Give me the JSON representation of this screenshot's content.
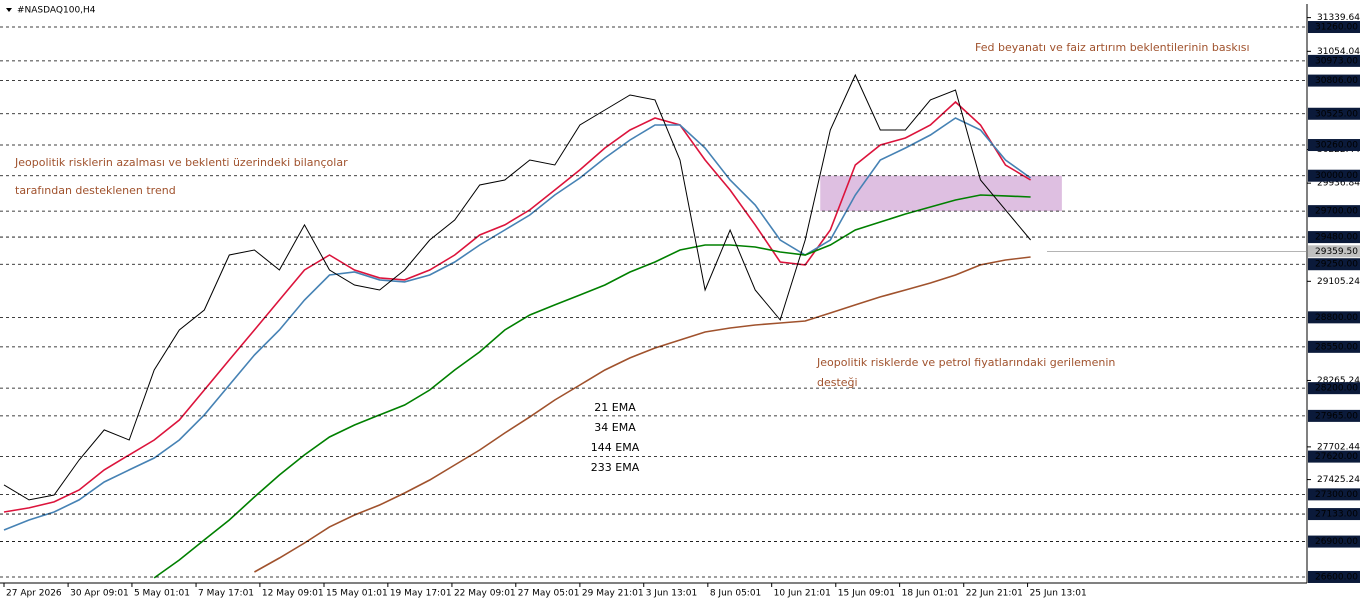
{
  "chart_data": {
    "type": "line",
    "title": "#NASDAQ100,H4",
    "xlim": [
      0,
      52
    ],
    "ylim": [
      26549,
      31455
    ],
    "xticks": [
      {
        "value": 0,
        "label": "27 Apr 2026"
      },
      {
        "value": 2.56,
        "label": "30 Apr 09:01"
      },
      {
        "value": 5.11,
        "label": "5 May 01:01"
      },
      {
        "value": 7.67,
        "label": "7 May 17:01"
      },
      {
        "value": 10.22,
        "label": "12 May 09:01"
      },
      {
        "value": 12.78,
        "label": "15 May 01:01"
      },
      {
        "value": 15.33,
        "label": "19 May 17:01"
      },
      {
        "value": 17.89,
        "label": "22 May 09:01"
      },
      {
        "value": 20.44,
        "label": "27 May 05:01"
      },
      {
        "value": 23,
        "label": "29 May 21:01"
      },
      {
        "value": 25.55,
        "label": "3 Jun 13:01"
      },
      {
        "value": 28.11,
        "label": "8 Jun 05:01"
      },
      {
        "value": 30.66,
        "label": "10 Jun 21:01"
      },
      {
        "value": 33.22,
        "label": "15 Jun 09:01"
      },
      {
        "value": 35.77,
        "label": "18 Jun 01:01"
      },
      {
        "value": 38.33,
        "label": "22 Jun 21:01"
      },
      {
        "value": 40.88,
        "label": "25 Jun 13:01"
      }
    ],
    "yticks": [
      31339.64,
      31054.04,
      30222.44,
      29936.84,
      29105.24,
      28265.24,
      27702.44,
      27425.24
    ],
    "levels": [
      {
        "value": 31260,
        "label": "31260.00"
      },
      {
        "value": 30973,
        "label": "30973.00"
      },
      {
        "value": 30806,
        "label": "30806.00"
      },
      {
        "value": 30525,
        "label": "30525.00"
      },
      {
        "value": 30260,
        "label": "30260.00"
      },
      {
        "value": 30000,
        "label": "30000.00"
      },
      {
        "value": 29700,
        "label": "29700.00"
      },
      {
        "value": 29480,
        "label": "29480.00"
      },
      {
        "value": 29250,
        "label": "29250.00"
      },
      {
        "value": 28800,
        "label": "28800.00"
      },
      {
        "value": 28550,
        "label": "28550.00"
      },
      {
        "value": 28200,
        "label": "28200.00"
      },
      {
        "value": 27965,
        "label": "27965.00"
      },
      {
        "value": 27620,
        "label": "27620.00"
      },
      {
        "value": 27300,
        "label": "27300.00"
      },
      {
        "value": 27133,
        "label": "27133.00"
      },
      {
        "value": 26900,
        "label": "26900.00"
      },
      {
        "value": 26600,
        "label": "26600.00"
      }
    ],
    "last_price": {
      "value": 29359.5,
      "label": "29359.50"
    },
    "x": [
      0,
      1,
      2,
      3,
      4,
      5,
      6,
      7,
      8,
      9,
      10,
      11,
      12,
      13,
      14,
      15,
      16,
      17,
      18,
      19,
      20,
      21,
      22,
      23,
      24,
      25,
      26,
      27,
      28,
      29,
      30,
      31,
      32,
      33,
      34,
      35,
      36,
      37,
      38,
      39,
      40,
      41
    ],
    "price": {
      "color": "#000000",
      "values": [
        27380,
        27253,
        27295,
        27591,
        27846,
        27761,
        28354,
        28693,
        28862,
        29328,
        29371,
        29201,
        29583,
        29201,
        29074,
        29032,
        29201,
        29455,
        29625,
        29921,
        29964,
        30133,
        30091,
        30430,
        30557,
        30684,
        30642,
        30133,
        29032,
        29540,
        29032,
        28778,
        29455,
        30387,
        30853,
        30387,
        30387,
        30642,
        30726,
        29964,
        29710,
        29455
      ]
    },
    "series": [
      {
        "name": "21 EMA",
        "color": "#dc143c",
        "values": [
          27151,
          27185,
          27236,
          27337,
          27507,
          27634,
          27761,
          27930,
          28184,
          28439,
          28693,
          28947,
          29201,
          29328,
          29201,
          29134,
          29117,
          29201,
          29328,
          29498,
          29583,
          29710,
          29879,
          30049,
          30235,
          30387,
          30489,
          30430,
          30133,
          29879,
          29583,
          29269,
          29244,
          29540,
          30091,
          30260,
          30320,
          30430,
          30625,
          30430,
          30091,
          29964
        ]
      },
      {
        "name": "34 EMA",
        "color": "#4682b4",
        "values": [
          26998,
          27083,
          27151,
          27253,
          27405,
          27507,
          27608,
          27761,
          27973,
          28227,
          28481,
          28693,
          28947,
          29159,
          29184,
          29117,
          29100,
          29159,
          29269,
          29413,
          29540,
          29667,
          29837,
          29981,
          30150,
          30303,
          30430,
          30430,
          30235,
          29964,
          29752,
          29455,
          29328,
          29455,
          29837,
          30133,
          30235,
          30345,
          30489,
          30387,
          30133,
          29981
        ]
      },
      {
        "name": "144 EMA",
        "color": "#008000",
        "values": [
          null,
          null,
          null,
          null,
          null,
          null,
          26592,
          26744,
          26914,
          27083,
          27278,
          27464,
          27634,
          27786,
          27888,
          27973,
          28057,
          28184,
          28354,
          28507,
          28693,
          28820,
          28905,
          28989,
          29074,
          29184,
          29269,
          29371,
          29413,
          29413,
          29396,
          29354,
          29328,
          29413,
          29540,
          29608,
          29676,
          29735,
          29794,
          29837,
          29829,
          29820
        ]
      },
      {
        "name": "233 EMA",
        "color": "#a0522d",
        "values": [
          null,
          null,
          null,
          null,
          null,
          null,
          null,
          null,
          null,
          null,
          26642,
          26761,
          26888,
          27024,
          27125,
          27210,
          27312,
          27422,
          27549,
          27676,
          27820,
          27956,
          28100,
          28227,
          28354,
          28456,
          28540,
          28608,
          28676,
          28710,
          28735,
          28752,
          28769,
          28837,
          28905,
          28973,
          29032,
          29091,
          29159,
          29244,
          29286,
          29311
        ]
      }
    ],
    "zone": {
      "x": [
        32.6,
        42.25
      ],
      "y": [
        29700,
        30000
      ],
      "color": "#d8b4dc"
    },
    "annotations": [
      {
        "text": "Jeopolitik risklerin azalması ve beklenti üzerindeki bilançolar"
      },
      {
        "text": "tarafından desteklenen trend"
      },
      {
        "text": "Fed beyanatı ve faiz artırım beklentilerinin baskısı"
      },
      {
        "text": "Jeopolitik risklerde ve petrol fiyatlarındaki gerilemenin"
      },
      {
        "text": "desteği"
      }
    ]
  }
}
